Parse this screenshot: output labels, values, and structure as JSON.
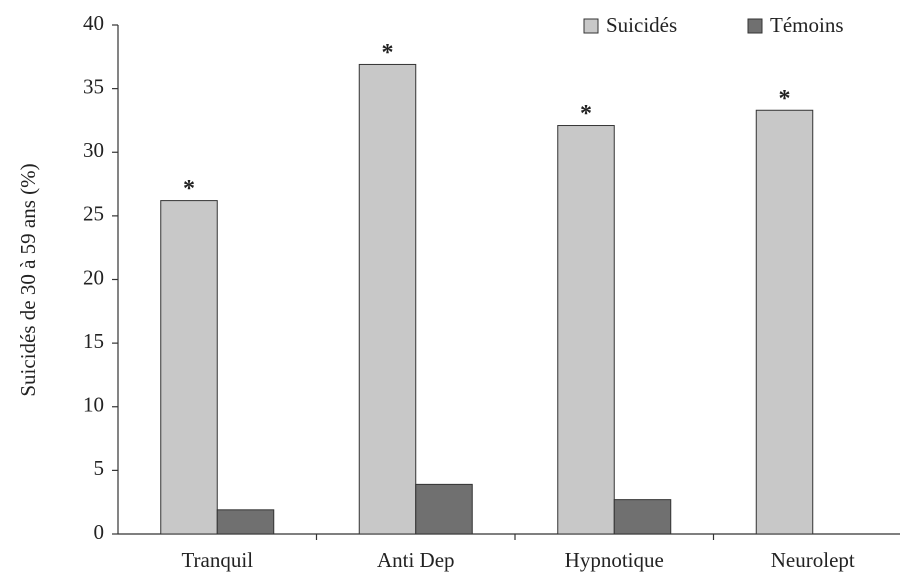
{
  "chart_data": {
    "type": "bar",
    "y_label": "Suicidés de 30 à 59 ans (%)",
    "categories": [
      "Tranquil",
      "Anti Dep",
      "Hypnotique",
      "Neurolept"
    ],
    "series": [
      {
        "name": "Suicidés",
        "color": "#c8c8c8",
        "values": [
          26.2,
          36.9,
          32.1,
          33.3
        ]
      },
      {
        "name": "Témoins",
        "color": "#707070",
        "values": [
          1.9,
          3.9,
          2.7,
          0
        ]
      }
    ],
    "annotations": [
      "*",
      "*",
      "*",
      "*"
    ],
    "ylim": [
      0,
      40
    ],
    "yticks": [
      0,
      5,
      10,
      15,
      20,
      25,
      30,
      35,
      40
    ],
    "legend": "top-right"
  }
}
